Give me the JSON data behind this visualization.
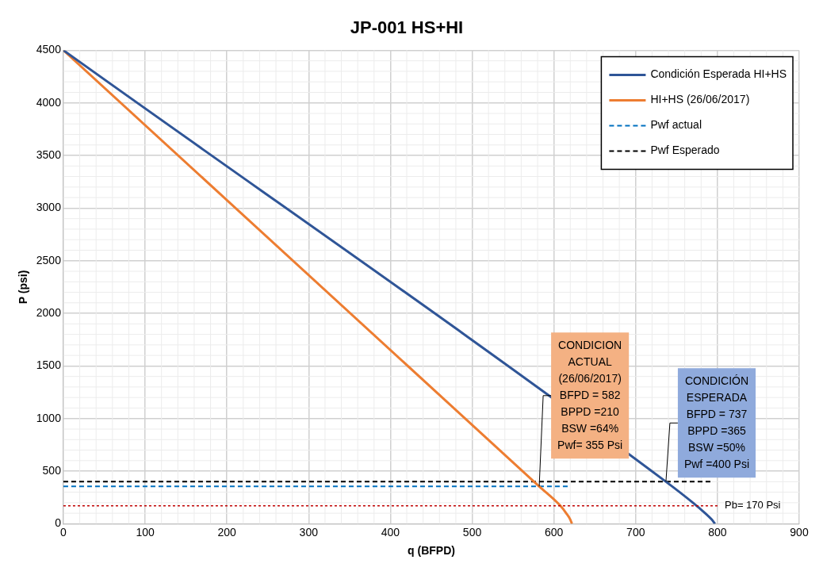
{
  "chart_data": {
    "type": "line",
    "title": "JP-001 HS+HI",
    "xlabel": "q (BFPD)",
    "ylabel": "P (psi)",
    "xlim": [
      0,
      900
    ],
    "xticks": [
      0,
      100,
      200,
      300,
      400,
      500,
      600,
      700,
      800,
      900
    ],
    "ylim": [
      0,
      4500
    ],
    "yticks": [
      0,
      500,
      1000,
      1500,
      2000,
      2500,
      3000,
      3500,
      4000,
      4500
    ],
    "grid": true,
    "legend": "top right",
    "marker": "none",
    "series": [
      {
        "name": "Condición Esperada HI+HS",
        "color": "#2f5597",
        "x": [
          0,
          737,
          770,
          785,
          793,
          797
        ],
        "values": [
          4500,
          400,
          200,
          100,
          40,
          0
        ]
      },
      {
        "name": "HI+HS (26/06/2017)",
        "color": "#ed7d31",
        "x": [
          0,
          582,
          608,
          615,
          620,
          622
        ],
        "values": [
          4500,
          355,
          170,
          100,
          40,
          0
        ]
      },
      {
        "name": "Pwf actual",
        "color": "#0070c0",
        "line_style": "dashed",
        "x": [
          0,
          619
        ],
        "values": [
          355,
          355
        ]
      },
      {
        "name": "Pwf Esperado",
        "color": "#000000",
        "line_style": "dashed",
        "x": [
          0,
          794
        ],
        "values": [
          400,
          400
        ]
      }
    ],
    "ref_lines": [
      {
        "axis": "y",
        "value": 170,
        "label": "Pb= 170 Psi",
        "color": "#c00000",
        "line_style": "dotted"
      }
    ],
    "annotations": [
      {
        "text": "CONDICION\nACTUAL\n(26/06/2017)\nBFPD = 582\nBPPD =210\nBSW =64%\nPwf= 355 Psi",
        "x": 582,
        "y": 355
      },
      {
        "text": "CONDICIÓN\nESPERADA\nBFPD = 737\nBPPD =365\nBSW =50%\nPwf =400 Psi",
        "x": 737,
        "y": 400
      }
    ]
  }
}
